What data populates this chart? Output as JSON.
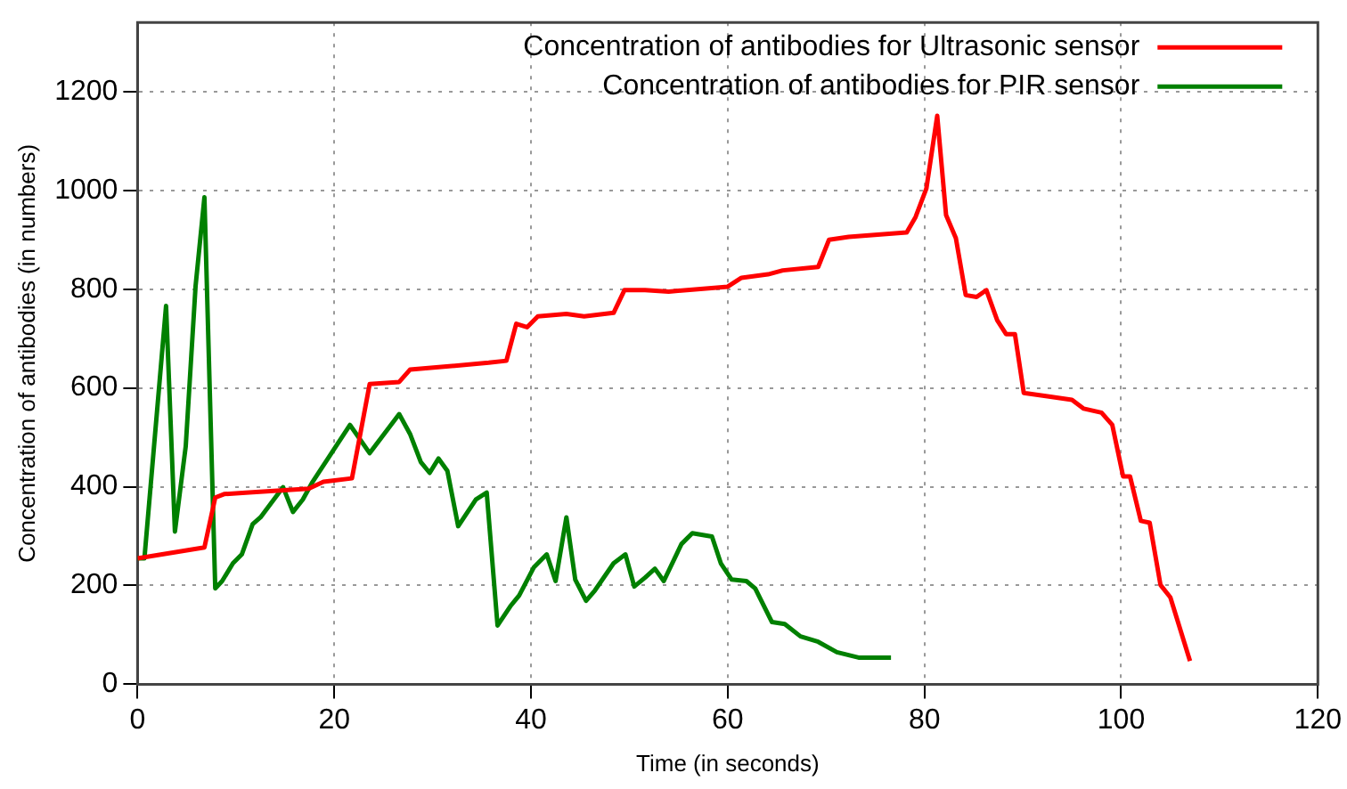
{
  "chart_data": {
    "type": "line",
    "xlabel": "Time (in seconds)",
    "ylabel": "Concentration of antibodies (in numbers)",
    "xlim": [
      0,
      120
    ],
    "xticks": [
      0,
      20,
      40,
      60,
      80,
      100,
      120
    ],
    "ylim": [
      0,
      1340
    ],
    "yticks": [
      0,
      200,
      400,
      600,
      800,
      1000,
      1200
    ],
    "grid": true,
    "legend": "top right",
    "marker": "none",
    "line_style": "solid",
    "series": [
      {
        "name": "Concentration of antibodies for Ultrasonic sensor",
        "color": "#ff0000",
        "x": [
          0,
          6.8,
          7.9,
          8.8,
          11,
          17.4,
          18.9,
          21.8,
          23.6,
          26.6,
          27.7,
          35.7,
          37.5,
          38.5,
          39.6,
          40.7,
          43.6,
          45.4,
          48.4,
          49.5,
          51.6,
          54,
          60,
          61.4,
          64.1,
          65.6,
          69.2,
          70.3,
          72.3,
          78.2,
          79.1,
          80.2,
          81.3,
          82.2,
          83.2,
          84.2,
          85.3,
          86.3,
          87.4,
          88.3,
          89.2,
          90.1,
          92.5,
          95,
          96.2,
          98,
          99.1,
          100.2,
          100.9,
          102,
          102.9,
          104,
          105,
          107
        ],
        "values": [
          255,
          277,
          378,
          385,
          388,
          396,
          410,
          417,
          608,
          612,
          637,
          651,
          655,
          730,
          723,
          745,
          750,
          745,
          752,
          798,
          798,
          795,
          805,
          823,
          830,
          838,
          845,
          900,
          906,
          915,
          946,
          1004,
          1151,
          950,
          903,
          788,
          784,
          798,
          737,
          709,
          709,
          590,
          583,
          576,
          558,
          550,
          525,
          421,
          421,
          331,
          327,
          201,
          176,
          47
        ]
      },
      {
        "name": "Concentration of antibodies for PIR sensor",
        "color": "#008000",
        "x": [
          0,
          0.7,
          2.9,
          3.8,
          4.9,
          5.9,
          6.8,
          7.9,
          8.6,
          9.7,
          10.6,
          11.7,
          12.5,
          14.8,
          15.8,
          16.8,
          17.8,
          21.6,
          23.6,
          26.6,
          27.7,
          28.8,
          29.7,
          30.6,
          31.5,
          32.6,
          34.4,
          35.5,
          36.6,
          37.9,
          38.8,
          40.3,
          41.6,
          42.5,
          43.6,
          44.5,
          45.6,
          46.5,
          48.4,
          49.6,
          50.5,
          51.6,
          52.6,
          53.5,
          55.3,
          56.4,
          58.4,
          59.3,
          60.4,
          61.9,
          62.8,
          64.5,
          65.8,
          67.4,
          69.2,
          71.1,
          73.3,
          76.6
        ],
        "values": [
          255,
          255,
          766,
          309,
          482,
          806,
          986,
          194,
          209,
          245,
          263,
          324,
          338,
          399,
          349,
          374,
          410,
          525,
          468,
          547,
          507,
          450,
          428,
          457,
          432,
          320,
          374,
          388,
          119,
          158,
          180,
          237,
          263,
          209,
          338,
          212,
          169,
          190,
          245,
          263,
          198,
          216,
          234,
          209,
          284,
          306,
          299,
          245,
          212,
          209,
          194,
          126,
          122,
          97,
          86,
          65,
          54,
          54
        ]
      }
    ]
  }
}
